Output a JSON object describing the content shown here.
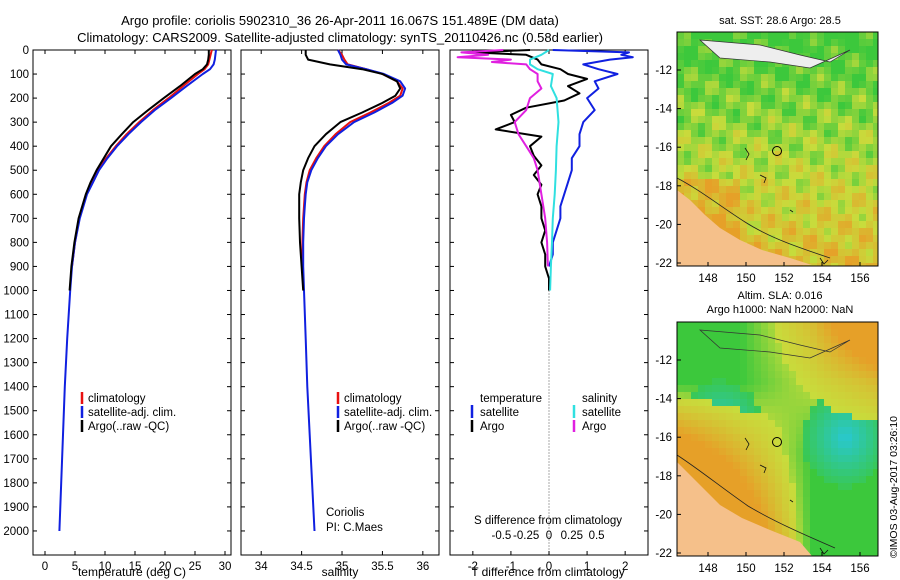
{
  "header": {
    "line1": "Argo profile: coriolis 5902310_36 26-Apr-2011 16.067S 151.489E (DM data)",
    "line2": "Climatology: CARS2009. Satellite-adjusted climatology: synTS_20110426.nc (0.58d earlier)"
  },
  "colors": {
    "climatology": "#e81010",
    "satellite": "#1020e0",
    "argo": "#000000",
    "sal_satellite": "#30e0e0",
    "sal_argo": "#e020e0",
    "land": "#f5c08a",
    "reef": "#303030"
  },
  "chart_data": [
    {
      "type": "line",
      "id": "temperature",
      "xlabel": "temperature (deg C)",
      "ylabel": "",
      "xlim": [
        -2,
        31
      ],
      "ylim": [
        2100,
        0
      ],
      "xticks": [
        0,
        5,
        10,
        15,
        20,
        25,
        30
      ],
      "yticks": [
        0,
        100,
        200,
        300,
        400,
        500,
        600,
        700,
        800,
        900,
        1000,
        1100,
        1200,
        1300,
        1400,
        1500,
        1600,
        1700,
        1800,
        1900,
        2000
      ],
      "legend": [
        "climatology",
        "satellite-adj. clim.",
        "Argo(..raw -QC)"
      ],
      "series": [
        {
          "name": "climatology",
          "color": "#e81010",
          "depth": [
            0,
            20,
            40,
            60,
            80,
            100,
            150,
            200,
            250,
            300,
            350,
            400,
            450,
            500,
            550,
            600,
            700,
            800,
            900
          ],
          "values": [
            27.8,
            27.6,
            27.4,
            27.2,
            26.6,
            25.5,
            23.0,
            20.6,
            18.0,
            15.7,
            13.6,
            11.8,
            10.2,
            8.8,
            7.8,
            6.9,
            5.7,
            5.0,
            4.5
          ]
        },
        {
          "name": "satellite-adj. clim.",
          "color": "#1020e0",
          "depth": [
            0,
            20,
            40,
            60,
            80,
            100,
            150,
            200,
            250,
            300,
            350,
            400,
            450,
            500,
            550,
            600,
            700,
            800,
            900,
            1000,
            1200,
            1400,
            1600,
            1800,
            2000
          ],
          "values": [
            28.5,
            28.4,
            28.3,
            28.1,
            27.5,
            26.3,
            23.6,
            21.0,
            18.3,
            16.0,
            13.9,
            12.0,
            10.4,
            9.0,
            8.0,
            7.0,
            5.8,
            5.0,
            4.5,
            4.2,
            3.7,
            3.3,
            3.0,
            2.7,
            2.4
          ]
        },
        {
          "name": "Argo(..raw -QC)",
          "color": "#000000",
          "depth": [
            0,
            20,
            40,
            60,
            80,
            100,
            150,
            200,
            250,
            300,
            350,
            400,
            450,
            500,
            550,
            600,
            700,
            800,
            900,
            1000
          ],
          "values": [
            27.3,
            27.3,
            27.2,
            27.0,
            26.3,
            25.0,
            22.5,
            19.8,
            17.2,
            14.7,
            12.8,
            11.0,
            9.8,
            8.6,
            7.6,
            6.8,
            5.6,
            4.9,
            4.4,
            4.1
          ]
        }
      ]
    },
    {
      "type": "line",
      "id": "salinity",
      "xlabel": "salinity",
      "xlim": [
        33.75,
        36.2
      ],
      "ylim": [
        2100,
        0
      ],
      "xticks": [
        34,
        34.5,
        35,
        35.5,
        36
      ],
      "legend": [
        "climatology",
        "satellite-adj. clim.",
        "Argo(..raw -QC)"
      ],
      "annotation": [
        "Coriolis",
        "PI: C.Maes"
      ],
      "series": [
        {
          "name": "climatology",
          "color": "#e81010",
          "depth": [
            0,
            20,
            40,
            60,
            80,
            100,
            130,
            160,
            190,
            220,
            260,
            300,
            350,
            400,
            450,
            500,
            550,
            600,
            650,
            700,
            800,
            900
          ],
          "values": [
            34.95,
            35.0,
            35.03,
            35.07,
            35.3,
            35.5,
            35.68,
            35.75,
            35.72,
            35.58,
            35.35,
            35.1,
            34.92,
            34.78,
            34.68,
            34.6,
            34.56,
            34.54,
            34.53,
            34.52,
            34.51,
            34.51
          ]
        },
        {
          "name": "satellite-adj. clim.",
          "color": "#1020e0",
          "depth": [
            0,
            20,
            40,
            60,
            80,
            100,
            130,
            160,
            190,
            220,
            260,
            300,
            350,
            400,
            450,
            500,
            550,
            600,
            650,
            700,
            800,
            900,
            1000,
            1200,
            1400,
            1600,
            1800,
            2000
          ],
          "values": [
            34.95,
            34.98,
            35.0,
            35.05,
            35.3,
            35.52,
            35.72,
            35.78,
            35.75,
            35.62,
            35.4,
            35.15,
            34.95,
            34.8,
            34.7,
            34.62,
            34.57,
            34.55,
            34.54,
            34.53,
            34.52,
            34.52,
            34.53,
            34.55,
            34.57,
            34.6,
            34.63,
            34.66
          ]
        },
        {
          "name": "Argo(..raw -QC)",
          "color": "#000000",
          "depth": [
            0,
            20,
            40,
            60,
            80,
            100,
            130,
            160,
            190,
            220,
            260,
            300,
            350,
            400,
            450,
            500,
            550,
            600,
            650,
            700,
            800,
            900,
            1000
          ],
          "values": [
            34.55,
            34.55,
            34.58,
            34.85,
            35.25,
            35.5,
            35.68,
            35.72,
            35.66,
            35.5,
            35.25,
            34.98,
            34.8,
            34.66,
            34.58,
            34.52,
            34.49,
            34.47,
            34.47,
            34.47,
            34.48,
            34.5,
            34.52
          ]
        }
      ]
    },
    {
      "type": "line",
      "id": "difference",
      "xlabel": "T difference from climatology",
      "xlabel_top": "S difference from climatology",
      "xlim": [
        -2.6,
        2.6
      ],
      "ylim": [
        2100,
        0
      ],
      "xticks": [
        -2,
        -1,
        0,
        1,
        2
      ],
      "s_ticks": [
        "-0.5",
        "-0.25",
        "0",
        "0.25",
        "0.5"
      ],
      "legend_temperature": {
        "heading": "temperature",
        "items": [
          "satellite",
          "Argo"
        ]
      },
      "legend_salinity": {
        "heading": "salinity",
        "items": [
          "satellite",
          "Argo"
        ]
      },
      "series": [
        {
          "name": "T satellite",
          "color": "#1020e0",
          "depth": [
            0,
            10,
            20,
            30,
            40,
            60,
            80,
            100,
            130,
            160,
            200,
            250,
            300,
            350,
            400,
            450,
            500,
            550,
            600,
            650,
            700,
            750,
            800,
            850,
            900
          ],
          "values": [
            0.1,
            2.1,
            1.9,
            2.2,
            1.6,
            0.9,
            1.3,
            1.8,
            1.2,
            1.3,
            1.0,
            1.2,
            0.9,
            0.8,
            0.8,
            0.6,
            0.6,
            0.5,
            0.4,
            0.3,
            0.3,
            0.2,
            0.1,
            0.1,
            0.0
          ]
        },
        {
          "name": "T Argo",
          "color": "#000000",
          "depth": [
            0,
            10,
            20,
            40,
            60,
            80,
            100,
            120,
            150,
            180,
            210,
            240,
            270,
            300,
            330,
            360,
            400,
            440,
            480,
            520,
            560,
            600,
            650,
            700,
            750,
            800,
            850,
            900,
            950,
            1000
          ],
          "values": [
            -0.5,
            -2.0,
            -0.6,
            -0.3,
            -0.2,
            0.3,
            0.5,
            1.0,
            0.5,
            0.8,
            0.4,
            -0.6,
            -1.0,
            -0.9,
            -1.4,
            -0.2,
            -0.5,
            -0.4,
            -0.2,
            -0.4,
            -0.2,
            -0.3,
            -0.2,
            -0.2,
            -0.1,
            -0.2,
            -0.1,
            -0.1,
            0.0,
            0.0
          ]
        },
        {
          "name": "S satellite",
          "color": "#30e0e0",
          "depth": [
            0,
            20,
            40,
            60,
            80,
            100,
            150,
            200,
            300,
            400,
            500,
            600,
            700,
            800,
            900,
            1000
          ],
          "values": [
            0.0,
            -0.2,
            -0.5,
            -0.5,
            -0.3,
            0.1,
            0.05,
            0.2,
            0.25,
            0.2,
            0.18,
            0.15,
            0.1,
            0.08,
            0.05,
            0.03
          ]
        },
        {
          "name": "S Argo",
          "color": "#e020e0",
          "depth": [
            0,
            10,
            20,
            30,
            40,
            50,
            60,
            80,
            100,
            130,
            160,
            200,
            250,
            300,
            350,
            400,
            450,
            500,
            600,
            700,
            800,
            900
          ],
          "values": [
            -1.2,
            -2.3,
            -1.6,
            -2.4,
            -1.0,
            -1.5,
            -0.6,
            -0.5,
            -0.3,
            -0.3,
            -0.2,
            -0.5,
            -0.6,
            -0.9,
            -0.8,
            -0.6,
            -0.4,
            -0.3,
            -0.2,
            -0.1,
            -0.05,
            -0.03
          ]
        }
      ]
    }
  ],
  "maps": {
    "sst_title": "sat. SST: 28.6  Argo: 28.5",
    "sla_title_1": "Altim. SLA: 0.016",
    "sla_title_2": "Argo h1000: NaN h2000: NaN",
    "lon_ticks": [
      "148",
      "150",
      "152",
      "154",
      "156"
    ],
    "lat_ticks": [
      "-12",
      "-14",
      "-16",
      "-18",
      "-20",
      "-22"
    ]
  },
  "credit": "©IMOS 03-Aug-2017 03:26:10"
}
